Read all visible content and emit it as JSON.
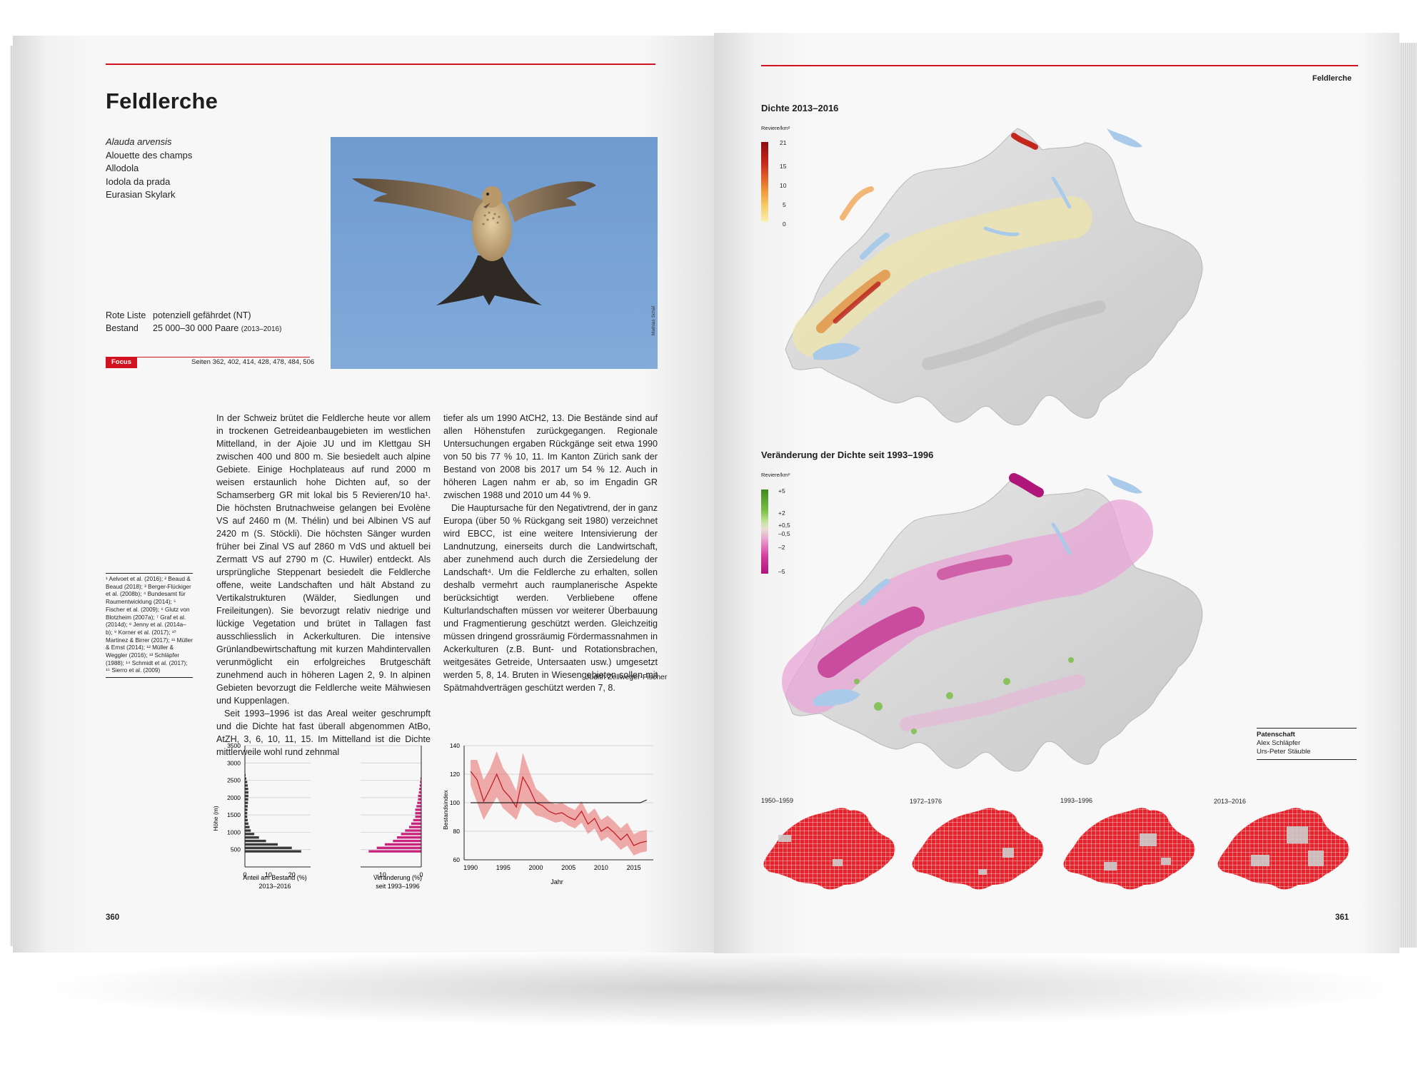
{
  "left_page": {
    "title": "Feldlerche",
    "names": [
      "Alauda arvensis",
      "Alouette des champs",
      "Allodola",
      "Iodola da prada",
      "Eurasian Skylark"
    ],
    "rote_liste_label": "Rote Liste",
    "rote_liste_value": "potenziell gefährdet (NT)",
    "bestand_label": "Bestand",
    "bestand_value": "25 000–30 000 Paare",
    "bestand_period": "(2013–2016)",
    "focus_label": "Focus",
    "focus_pages": "Seiten 362, 402, 414, 428, 478, 484, 506",
    "photo_credit": "Mathias Schäf",
    "references": "¹ Aelvoet et al. (2016); ² Beaud & Beaud (2018); ³ Berger-Flückiger et al. (2008b); ⁴ Bundesamt für Raumentwicklung (2014); ⁵ Fischer et al. (2009); ⁶ Glutz von Blotzheim (2007a); ⁷ Graf et al. (2014d); ⁸ Jenny et al. (2014a–b); ⁹ Korner et al. (2017); ¹⁰ Martinez & Birrer (2017); ¹¹ Müller & Ernst (2014); ¹² Müller & Weggler (2016); ¹³ Schläpfer (1988); ¹⁴ Schmidt et al. (2017); ¹⁵ Sierro et al. (2009)",
    "col1_p1": "In der Schweiz brütet die Feldlerche heute vor allem in trockenen Getreideanbaugebieten im westlichen Mittelland, in der Ajoie JU und im Klettgau SH zwischen 400 und 800 m. Sie besiedelt auch alpine Gebiete. Einige Hochplateaus auf rund 2000 m weisen erstaunlich hohe Dichten auf, so der Schamserberg GR mit lokal bis 5 Revieren/10 ha¹. Die höchsten Brutnachweise gelangen bei Evolène VS auf 2460 m (M. Thélin) und bei Albinen VS auf 2420 m (S. Stöckli). Die höchsten Sänger wurden früher bei Zinal VS auf 2860 m VdS und aktuell bei Zermatt VS auf 2790 m (C. Huwiler) entdeckt. Als ursprüngliche Steppenart besiedelt die Feldlerche offene, weite Landschaften und hält Abstand zu Vertikalstrukturen (Wälder, Siedlungen und Freileitungen). Sie bevorzugt relativ niedrige und lückige Vegetation und brütet in Tallagen fast ausschliesslich in Ackerkulturen. Die intensive Grünlandbewirtschaftung mit kurzen Mahdintervallen verunmöglicht ein erfolgreiches Brutgeschäft zunehmend auch in höheren Lagen 2, 9. In alpinen Gebieten bevorzugt die Feldlerche weite Mähwiesen und Kuppenlagen.",
    "col1_p2": "Seit 1993–1996 ist das Areal weiter geschrumpft und die Dichte hat fast überall abgenommen AtBo, AtZH, 3, 6, 10, 11, 15. Im Mittelland ist die Dichte mittlerweile wohl rund zehnmal",
    "col2_p1": "tiefer als um 1990 AtCH2, 13. Die Bestände sind auf allen Höhenstufen zurückgegangen. Regionale Untersuchungen ergaben Rückgänge seit etwa 1990 von 50 bis 77 % 10, 11. Im Kanton Zürich sank der Bestand von 2008 bis 2017 um 54 % 12. Auch in höheren Lagen nahm er ab, so im Engadin GR zwischen 1988 und 2010 um 44 % 9.",
    "col2_p2": "Die Hauptursache für den Negativtrend, der in ganz Europa (über 50 % Rückgang seit 1980) verzeichnet wird EBCC, ist eine weitere Intensivierung der Landnutzung, einerseits durch die Landwirtschaft, aber zunehmend auch durch die Zersiedelung der Landschaft⁴. Um die Feldlerche zu erhalten, sollen deshalb vermehrt auch raumplanerische Aspekte berücksichtigt werden. Verbliebene offene Kulturlandschaften müssen vor weiterer Überbauung und Fragmentierung geschützt werden. Gleichzeitig müssen dringend grossräumig Fördermassnahmen in Ackerkulturen (z.B. Bunt- und Rotationsbrachen, weitgesätes Getreide, Untersaaten usw.) umgesetzt werden 5, 8, 14. Bruten in Wiesengebieten sollen mit Spätmahdverträgen geschützt werden 7, 8.",
    "author": "Judith Zellweger-Fischer",
    "page_number": "360"
  },
  "right_page": {
    "running_head": "Feldlerche",
    "map1_title": "Dichte 2013–2016",
    "map1_unit": "Reviere/km²",
    "map1_legend": [
      "21",
      "15",
      "10",
      "5",
      "0"
    ],
    "map1_colors": [
      "#8b0d12",
      "#c4261c",
      "#e1612b",
      "#ef9b3e",
      "#f6cc6a",
      "#f7f0b4"
    ],
    "map2_title": "Veränderung der Dichte seit 1993–1996",
    "map2_unit": "Reviere/km²",
    "map2_legend": [
      "+5",
      "+2",
      "+0,5",
      "–0,5",
      "–2",
      "–5"
    ],
    "map2_colors": [
      "#3f8a1f",
      "#7bbf47",
      "#c4e39a",
      "#e8dfd6",
      "#e89ed0",
      "#d23b9a",
      "#b0157a"
    ],
    "patenschaft_label": "Patenschaft",
    "patenschaft_names": [
      "Alex Schläpfer",
      "Urs-Peter Stäuble"
    ],
    "periods": [
      "1950–1959",
      "1972–1976",
      "1993–1996",
      "2013–2016"
    ],
    "page_number": "361"
  },
  "chart_data": [
    {
      "type": "bar",
      "orientation": "horizontal",
      "title": "",
      "xlabel": "Anteil am Bestand (%) 2013–2016",
      "xlabel_line1": "Anteil am Bestand (%)",
      "xlabel_line2": "2013–2016",
      "ylabel": "Höhe (m)",
      "x_ticks": [
        "0",
        "10",
        "20"
      ],
      "y_ticks": [
        "3500",
        "3000",
        "2500",
        "2000",
        "1500",
        "1000",
        "500"
      ],
      "xlim": [
        0,
        28
      ],
      "ylim": [
        0,
        3500
      ],
      "bin_width": 100,
      "bins": [
        400,
        500,
        600,
        700,
        800,
        900,
        1000,
        1100,
        1200,
        1300,
        1400,
        1500,
        1600,
        1700,
        1800,
        1900,
        2000,
        2100,
        2200,
        2300,
        2400,
        2500,
        2600
      ],
      "values": [
        24,
        20,
        14,
        9,
        6,
        4,
        2.5,
        2,
        1.5,
        1.2,
        1,
        1,
        1.1,
        1.2,
        1.3,
        1.4,
        1.5,
        1.5,
        1.4,
        1.2,
        1,
        0.6,
        0.3
      ]
    },
    {
      "type": "bar",
      "orientation": "horizontal",
      "title": "",
      "xlabel": "Veränderung (%) seit 1993–1996",
      "xlabel_line1": "Veränderung (%)",
      "xlabel_line2": "seit 1993–1996",
      "x_ticks": [
        "–10",
        "0"
      ],
      "xlim": [
        -15,
        0
      ],
      "ylim": [
        0,
        3500
      ],
      "bin_width": 100,
      "bins": [
        400,
        500,
        600,
        700,
        800,
        900,
        1000,
        1100,
        1200,
        1300,
        1400,
        1500,
        1600,
        1700,
        1800,
        1900,
        2000,
        2100,
        2200,
        2300,
        2400,
        2500,
        2600
      ],
      "values": [
        -13,
        -11,
        -9,
        -7,
        -6,
        -5,
        -4,
        -3,
        -2.5,
        -2,
        -1.5,
        -1.5,
        -1.5,
        -1.2,
        -1,
        -0.8,
        -0.8,
        -0.6,
        -0.5,
        -0.4,
        -0.3,
        -0.2,
        -0.1
      ]
    },
    {
      "type": "line",
      "title": "",
      "xlabel": "Jahr",
      "ylabel": "Bestandsindex",
      "xlim": [
        1989,
        2018
      ],
      "ylim": [
        60,
        140
      ],
      "x_ticks": [
        "1990",
        "1995",
        "2000",
        "2005",
        "2010",
        "2015"
      ],
      "y_ticks": [
        "140",
        "120",
        "100",
        "80",
        "60"
      ],
      "x": [
        1990,
        1991,
        1992,
        1993,
        1994,
        1995,
        1996,
        1997,
        1998,
        1999,
        2000,
        2001,
        2002,
        2003,
        2004,
        2005,
        2006,
        2007,
        2008,
        2009,
        2010,
        2011,
        2012,
        2013,
        2014,
        2015,
        2016,
        2017
      ],
      "series": [
        {
          "name": "index",
          "values": [
            122,
            116,
            101,
            110,
            120,
            109,
            104,
            97,
            118,
            110,
            100,
            98,
            94,
            92,
            93,
            90,
            88,
            94,
            85,
            89,
            80,
            83,
            79,
            74,
            78,
            70,
            72,
            73
          ],
          "lower": [
            112,
            100,
            88,
            96,
            104,
            96,
            92,
            88,
            100,
            96,
            91,
            90,
            88,
            86,
            87,
            84,
            82,
            86,
            78,
            82,
            73,
            76,
            72,
            67,
            70,
            63,
            65,
            66
          ],
          "upper": [
            130,
            130,
            116,
            124,
            136,
            124,
            118,
            108,
            135,
            122,
            110,
            106,
            101,
            99,
            100,
            97,
            95,
            101,
            92,
            96,
            88,
            91,
            87,
            82,
            86,
            78,
            80,
            81
          ]
        },
        {
          "name": "trend",
          "values": [
            100,
            100,
            100,
            100,
            100,
            100,
            100,
            100,
            100,
            100,
            100,
            100,
            100,
            100,
            100,
            100,
            100,
            100,
            100,
            100,
            100,
            100,
            100,
            100,
            100,
            100,
            100,
            102
          ]
        }
      ]
    }
  ]
}
